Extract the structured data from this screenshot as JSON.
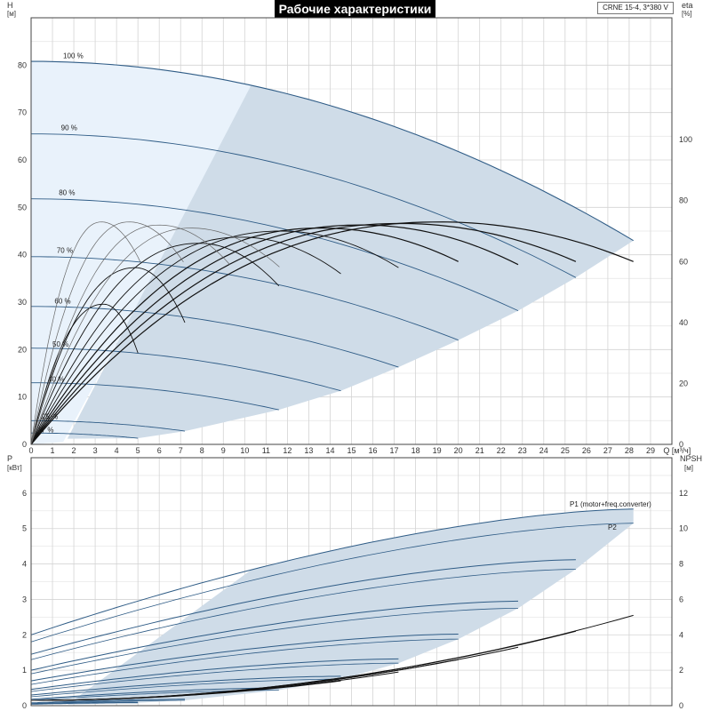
{
  "title": "Рабочие характеристики",
  "model": "CRNE 15-4, 3*380 V",
  "axes": {
    "top_left_label": "H",
    "top_left_unit": "[м]",
    "top_right_label": "eta",
    "top_right_unit": "[%]",
    "x_label": "Q",
    "x_unit": "[м³/ч]",
    "bottom_left_label": "P",
    "bottom_left_unit": "[кВт]",
    "bottom_right_label": "NPSH",
    "bottom_right_unit": "[м]"
  },
  "colors": {
    "region_fill": "#cfdce8",
    "low_zone_fill": "#e9f2fb",
    "curve_blue": "#2f5c86",
    "curve_black": "#111111",
    "curve_gray": "#666666"
  },
  "chart_data": [
    {
      "type": "line",
      "name": "head-curves",
      "xlim": [
        0,
        30
      ],
      "ylim": [
        0,
        90
      ],
      "y2lim": [
        0,
        140
      ],
      "x_ticks": [
        0,
        1,
        2,
        3,
        4,
        5,
        6,
        7,
        8,
        9,
        10,
        11,
        12,
        13,
        14,
        15,
        16,
        17,
        18,
        19,
        20,
        21,
        22,
        23,
        24,
        25,
        26,
        27,
        28,
        29
      ],
      "y_ticks": [
        0,
        10,
        20,
        30,
        40,
        50,
        60,
        70,
        80
      ],
      "y2_ticks": [
        0,
        20,
        40,
        60,
        80,
        100
      ],
      "speed_labels": [
        {
          "text": "100 %",
          "q": 1.5,
          "h": 81.5
        },
        {
          "text": "90 %",
          "q": 1.4,
          "h": 66.3
        },
        {
          "text": "80 %",
          "q": 1.3,
          "h": 52.6
        },
        {
          "text": "70 %",
          "q": 1.2,
          "h": 40.4
        },
        {
          "text": "60 %",
          "q": 1.1,
          "h": 29.7
        },
        {
          "text": "50 %",
          "q": 1.0,
          "h": 20.6
        },
        {
          "text": "40 %",
          "q": 0.8,
          "h": 13.2
        },
        {
          "text": "25 %",
          "q": 0.5,
          "h": 5.3
        },
        {
          "text": "17 %",
          "q": 0.3,
          "h": 2.5
        }
      ],
      "head_series": [
        {
          "fraction": 1.0,
          "h0": 80.8,
          "qmax": 28.2,
          "hend": 43.0
        },
        {
          "fraction": 0.9,
          "h0": 65.5,
          "qmax": 25.5,
          "hend": 35.2
        },
        {
          "fraction": 0.8,
          "h0": 51.8,
          "qmax": 22.8,
          "hend": 28.2
        },
        {
          "fraction": 0.7,
          "h0": 39.6,
          "qmax": 20.0,
          "hend": 22.0
        },
        {
          "fraction": 0.6,
          "h0": 29.1,
          "qmax": 17.2,
          "hend": 16.3
        },
        {
          "fraction": 0.5,
          "h0": 20.3,
          "qmax": 14.5,
          "hend": 11.3
        },
        {
          "fraction": 0.4,
          "h0": 13.0,
          "qmax": 11.6,
          "hend": 7.3
        },
        {
          "fraction": 0.25,
          "h0": 5.0,
          "qmax": 7.2,
          "hend": 2.8
        },
        {
          "fraction": 0.17,
          "h0": 2.4,
          "qmax": 5.0,
          "hend": 1.3
        }
      ],
      "eta_series": [
        {
          "qmax": 28.2,
          "eta_end": 60,
          "color": "black"
        },
        {
          "qmax": 25.5,
          "eta_end": 60,
          "color": "black"
        },
        {
          "qmax": 22.8,
          "eta_end": 59,
          "color": "black"
        },
        {
          "qmax": 20.0,
          "eta_end": 60,
          "color": "black"
        },
        {
          "qmax": 17.2,
          "eta_end": 58,
          "color": "black"
        },
        {
          "qmax": 14.5,
          "eta_end": 56,
          "color": "black"
        },
        {
          "qmax": 11.6,
          "eta_end": 52,
          "color": "black"
        },
        {
          "qmax": 7.2,
          "eta_end": 40,
          "color": "black"
        },
        {
          "qmax": 5.0,
          "eta_end": 30,
          "color": "black"
        }
      ],
      "eta_peak": [
        {
          "qmax": 28.2,
          "peak": 73
        },
        {
          "qmax": 25.5,
          "peak": 72.5
        },
        {
          "qmax": 22.8,
          "peak": 72
        },
        {
          "qmax": 20.0,
          "peak": 71
        },
        {
          "qmax": 17.2,
          "peak": 70
        },
        {
          "qmax": 14.5,
          "peak": 68
        },
        {
          "qmax": 11.6,
          "peak": 66
        },
        {
          "qmax": 7.2,
          "peak": 58
        },
        {
          "qmax": 5.0,
          "peak": 46
        }
      ],
      "eta_gray_peaks": [
        {
          "qpk": 3.3,
          "peak": 73
        },
        {
          "qpk": 4.6,
          "peak": 73
        },
        {
          "qpk": 6.0,
          "peak": 72
        },
        {
          "qpk": 7.5,
          "peak": 71
        }
      ]
    },
    {
      "type": "line",
      "name": "power-curves",
      "xlim": [
        0,
        30
      ],
      "ylim": [
        0,
        7
      ],
      "y2lim": [
        0,
        14
      ],
      "y_ticks": [
        0,
        1,
        2,
        3,
        4,
        5,
        6
      ],
      "y2_ticks": [
        0,
        2,
        4,
        6,
        8,
        10,
        12
      ],
      "series_labels": [
        "P1 (motor+freq.converter)",
        "P2"
      ],
      "p1_series": [
        {
          "qmax": 28.2,
          "p0": 2.0,
          "pend": 5.55
        },
        {
          "qmax": 25.5,
          "p0": 1.45,
          "pend": 4.12
        },
        {
          "qmax": 22.8,
          "p0": 1.0,
          "pend": 2.95
        },
        {
          "qmax": 20.0,
          "p0": 0.7,
          "pend": 2.02
        },
        {
          "qmax": 17.2,
          "p0": 0.46,
          "pend": 1.32
        },
        {
          "qmax": 14.5,
          "p0": 0.3,
          "pend": 0.83
        },
        {
          "qmax": 11.6,
          "p0": 0.18,
          "pend": 0.5
        },
        {
          "qmax": 7.2,
          "p0": 0.08,
          "pend": 0.18
        },
        {
          "qmax": 5.0,
          "p0": 0.05,
          "pend": 0.1
        }
      ],
      "p2_series": [
        {
          "qmax": 28.2,
          "p0": 1.8,
          "pend": 5.15
        },
        {
          "qmax": 25.5,
          "p0": 1.3,
          "pend": 3.85
        },
        {
          "qmax": 22.8,
          "p0": 0.9,
          "pend": 2.75
        },
        {
          "qmax": 20.0,
          "p0": 0.6,
          "pend": 1.88
        },
        {
          "qmax": 17.2,
          "p0": 0.4,
          "pend": 1.2
        },
        {
          "qmax": 14.5,
          "p0": 0.25,
          "pend": 0.75
        },
        {
          "qmax": 11.6,
          "p0": 0.15,
          "pend": 0.44
        },
        {
          "qmax": 7.2,
          "p0": 0.06,
          "pend": 0.15
        },
        {
          "qmax": 5.0,
          "p0": 0.04,
          "pend": 0.08
        }
      ],
      "npsh_series": [
        {
          "qmax": 28.2,
          "nend": 5.1
        },
        {
          "qmax": 25.5,
          "nend": 4.2
        },
        {
          "qmax": 22.8,
          "nend": 3.3
        },
        {
          "qmax": 20.0,
          "nend": 2.6
        },
        {
          "qmax": 17.2,
          "nend": 1.9
        },
        {
          "qmax": 14.5,
          "nend": 1.4
        }
      ]
    }
  ]
}
